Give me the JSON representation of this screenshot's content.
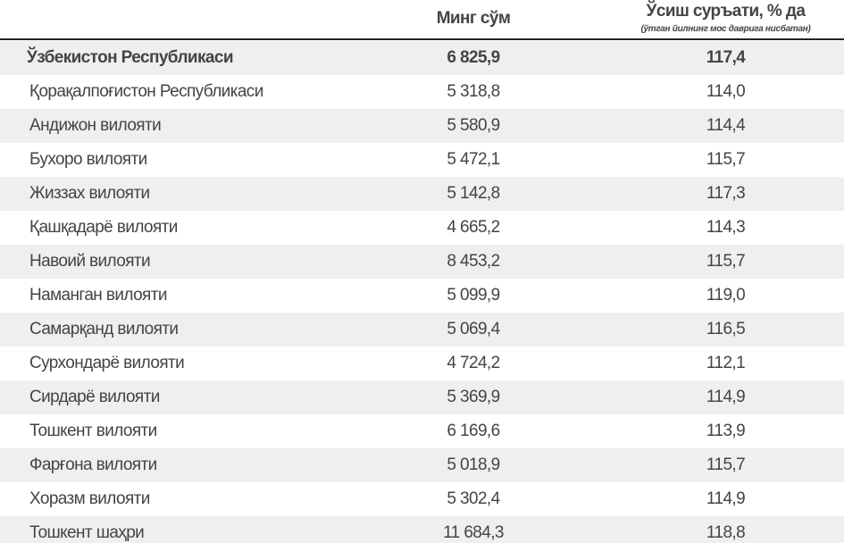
{
  "header": {
    "columns": [
      "Минг сўм",
      "Ўсиш суръати, % да"
    ],
    "note": "(ўтган йилнинг мос даврига нисбатан)"
  },
  "table": {
    "rows": [
      [
        "Ўзбекистон Республикаси",
        "6 825,9",
        "117,4"
      ],
      [
        "Қорақалпоғистон Республикаси",
        "5 318,8",
        "114,0"
      ],
      [
        "Андижон вилояти",
        "5 580,9",
        "114,4"
      ],
      [
        "Бухоро вилояти",
        "5 472,1",
        "115,7"
      ],
      [
        "Жиззах вилояти",
        "5 142,8",
        "117,3"
      ],
      [
        "Қашқадарё вилояти",
        "4 665,2",
        "114,3"
      ],
      [
        "Навоий вилояти",
        "8 453,2",
        "115,7"
      ],
      [
        "Наманган вилояти",
        "5 099,9",
        "119,0"
      ],
      [
        "Самарқанд вилояти",
        "5 069,4",
        "116,5"
      ],
      [
        "Сурхондарё вилояти",
        "4 724,2",
        "112,1"
      ],
      [
        "Сирдарё вилояти",
        "5 369,9",
        "114,9"
      ],
      [
        "Тошкент вилояти",
        "6 169,6",
        "113,9"
      ],
      [
        "Фарғона вилояти",
        "5 018,9",
        "115,7"
      ],
      [
        "Хоразм вилояти",
        "5 302,4",
        "114,9"
      ],
      [
        "Тошкент шаҳри",
        "11 684,3",
        "118,8"
      ]
    ]
  }
}
